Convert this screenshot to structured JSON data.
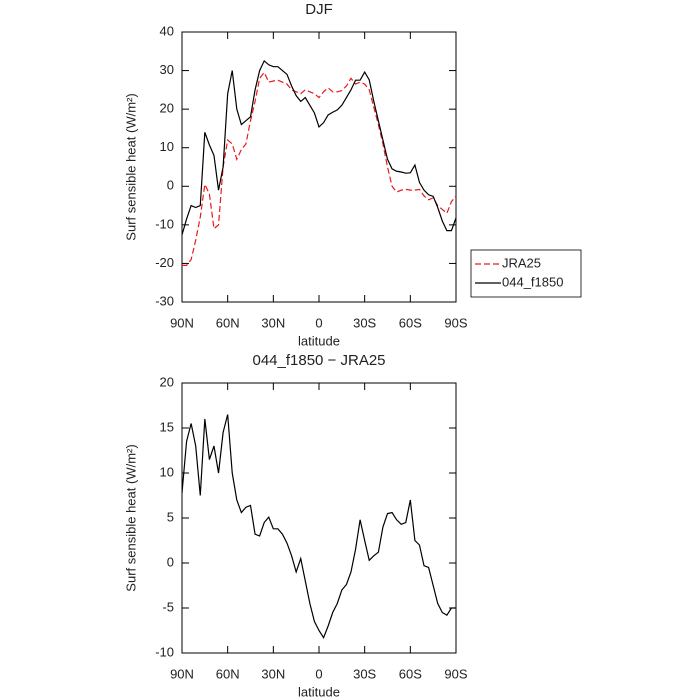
{
  "chart_data": [
    {
      "type": "line",
      "title": "DJF",
      "xlabel": "latitude",
      "ylabel": "Surf sensible heat (W/m²)",
      "x": [
        90,
        87,
        84,
        81,
        78,
        75,
        72,
        69,
        66,
        63,
        60,
        57,
        54,
        51,
        48,
        45,
        42,
        39,
        36,
        33,
        30,
        27,
        24,
        21,
        18,
        15,
        12,
        9,
        6,
        3,
        0,
        -3,
        -6,
        -9,
        -12,
        -15,
        -18,
        -21,
        -24,
        -27,
        -30,
        -33,
        -36,
        -39,
        -42,
        -45,
        -48,
        -51,
        -54,
        -57,
        -60,
        -63,
        -66,
        -69,
        -72,
        -75,
        -78,
        -81,
        -84,
        -87,
        -90
      ],
      "series": [
        {
          "name": "JRA25",
          "color": "#e8191c",
          "linestyle": "dashed",
          "values": [
            -20.5,
            -20.5,
            -19,
            -14,
            -8,
            0.5,
            -2,
            -11,
            -10,
            5,
            12,
            11,
            7,
            9.5,
            11,
            17,
            22,
            28,
            29.5,
            27,
            27.3,
            27.5,
            27,
            26.5,
            25,
            24.5,
            24,
            25,
            24.5,
            24,
            23,
            24.5,
            25.5,
            24.5,
            24.5,
            24.8,
            26,
            28,
            26.5,
            27,
            26.5,
            25,
            20.5,
            16,
            11,
            5,
            0,
            -1.5,
            -1,
            -0.8,
            -1,
            -1,
            -0.8,
            -2.5,
            -3.5,
            -3,
            -5,
            -6,
            -7,
            -4,
            -2.5
          ]
        },
        {
          "name": "044_f1850",
          "color": "#000000",
          "linestyle": "solid",
          "values": [
            -12.6,
            -8.5,
            -5,
            -5.5,
            -5,
            14,
            10.7,
            8,
            -1,
            5,
            24,
            30,
            20,
            16,
            17,
            18,
            25,
            30,
            32.5,
            31.5,
            31,
            31,
            30,
            29,
            26,
            23.5,
            22,
            23,
            21,
            19,
            15.4,
            16.5,
            18.5,
            19.2,
            19.8,
            21,
            23,
            25,
            27.5,
            27.5,
            29.6,
            27.6,
            22,
            17,
            12,
            7,
            4.5,
            3.9,
            3.7,
            3.4,
            3.5,
            5.5,
            1,
            -1,
            -2.2,
            -2.6,
            -5.5,
            -9,
            -11.5,
            -11.5,
            -8.2
          ]
        }
      ],
      "xlim": [
        90,
        -90
      ],
      "ylim": [
        -30,
        40
      ],
      "xticks": [
        {
          "value": 90,
          "label": "90N"
        },
        {
          "value": 60,
          "label": "60N"
        },
        {
          "value": 30,
          "label": "30N"
        },
        0,
        {
          "value": -30,
          "label": "30S"
        },
        {
          "value": -60,
          "label": "60S"
        },
        {
          "value": -90,
          "label": "90S"
        }
      ],
      "yticks": [
        -30,
        -20,
        -10,
        0,
        10,
        20,
        30,
        40
      ],
      "legend": "outside-right"
    },
    {
      "type": "line",
      "title": "044_f1850 − JRA25",
      "xlabel": "latitude",
      "ylabel": "Surf sensible heat (W/m²)",
      "x": [
        90,
        87,
        84,
        81,
        78,
        75,
        72,
        69,
        66,
        63,
        60,
        57,
        54,
        51,
        48,
        45,
        42,
        39,
        36,
        33,
        30,
        27,
        24,
        21,
        18,
        15,
        12,
        9,
        6,
        3,
        0,
        -3,
        -6,
        -9,
        -12,
        -15,
        -18,
        -21,
        -24,
        -27,
        -30,
        -33,
        -36,
        -39,
        -42,
        -45,
        -48,
        -51,
        -54,
        -57,
        -60,
        -63,
        -66,
        -69,
        -72,
        -75,
        -78,
        -81,
        -84,
        -87,
        -90
      ],
      "series": [
        {
          "color": "#000000",
          "linestyle": "solid",
          "values": [
            7.8,
            13.5,
            15.5,
            13,
            7.5,
            16,
            11.5,
            13,
            10,
            14.5,
            16.5,
            10,
            7,
            5.6,
            6.2,
            6.4,
            3.2,
            3,
            4.5,
            5.1,
            3.8,
            3.8,
            3.2,
            2.2,
            0.8,
            -1,
            0.5,
            -2,
            -4.5,
            -6.5,
            -7.5,
            -8.3,
            -7,
            -5.5,
            -4.5,
            -3,
            -2.4,
            -1,
            1.5,
            4.8,
            2.5,
            0.3,
            0.8,
            1.2,
            4,
            5.5,
            5.6,
            4.8,
            4.3,
            4.5,
            7,
            2.5,
            2,
            -0.3,
            -0.5,
            -2.5,
            -4.5,
            -5.5,
            -5.8,
            -5,
            -5
          ]
        }
      ],
      "xlim": [
        90,
        -90
      ],
      "ylim": [
        -10,
        20
      ],
      "xticks": [
        {
          "value": 90,
          "label": "90N"
        },
        {
          "value": 60,
          "label": "60N"
        },
        {
          "value": 30,
          "label": "30N"
        },
        0,
        {
          "value": -30,
          "label": "30S"
        },
        {
          "value": -60,
          "label": "60S"
        },
        {
          "value": -90,
          "label": "90S"
        }
      ],
      "yticks": [
        -10,
        -5,
        0,
        5,
        10,
        15,
        20
      ]
    }
  ]
}
